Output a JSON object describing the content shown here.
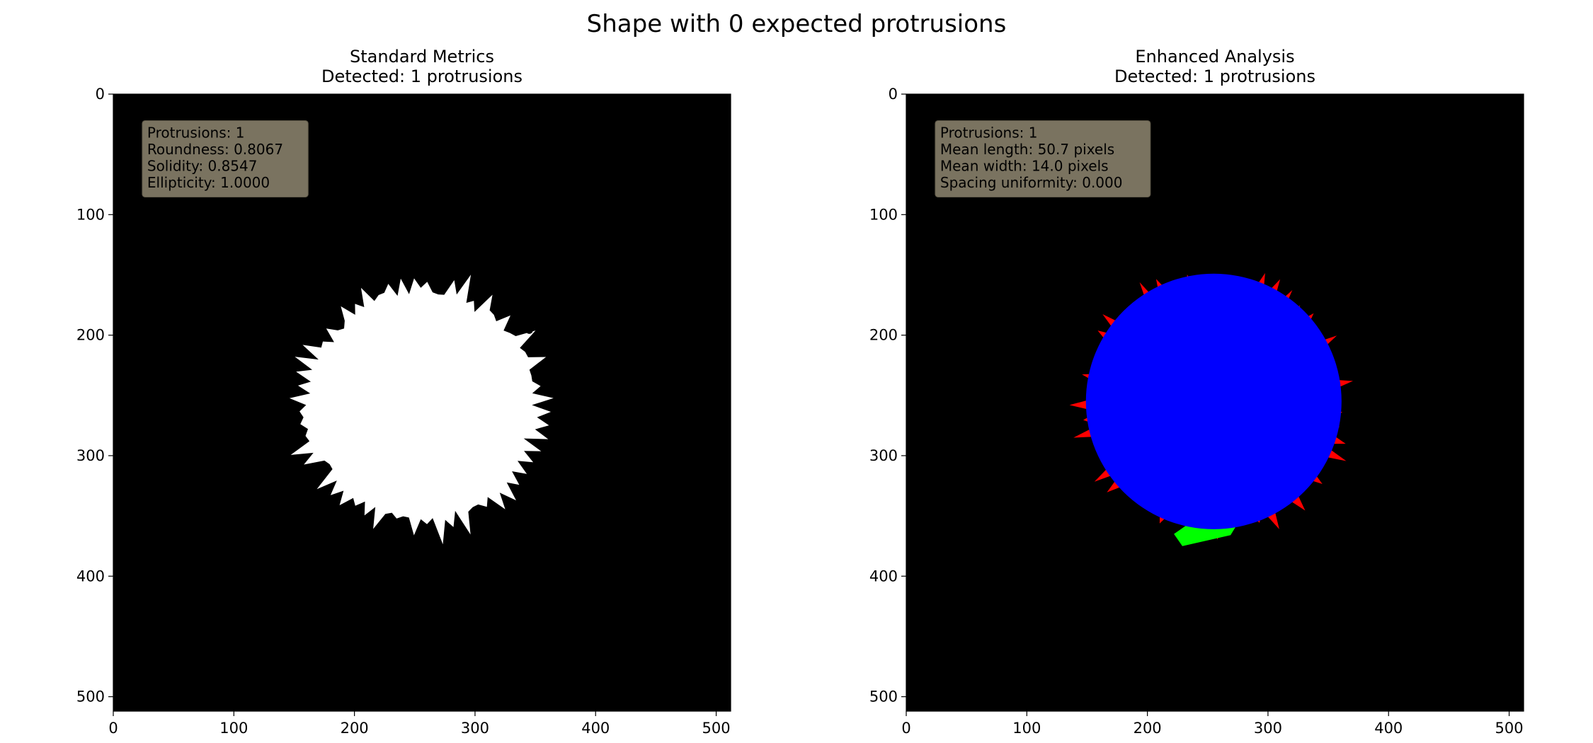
{
  "figure": {
    "suptitle": "Shape with 0 expected protrusions"
  },
  "colors": {
    "background": "#000000",
    "shape_white": "#ffffff",
    "core_blue": "#0000ff",
    "protrusion_red": "#ff0000",
    "detected_green": "#00ff00",
    "info_box": "#7a7360"
  },
  "chart_data": [
    {
      "type": "image",
      "title_line1": "Standard Metrics",
      "title_line2": "Detected: 1 protrusions",
      "xlim": [
        0,
        512
      ],
      "ylim": [
        512,
        0
      ],
      "xticks": [
        0,
        100,
        200,
        300,
        400,
        500
      ],
      "yticks": [
        0,
        100,
        200,
        300,
        400,
        500
      ],
      "shape_center": [
        255,
        258
      ],
      "shape_mean_radius": 95,
      "info": [
        "Protrusions: 1",
        "Roundness: 0.8067",
        "Solidity: 0.8547",
        "Ellipticity: 1.0000"
      ]
    },
    {
      "type": "image",
      "title_line1": "Enhanced Analysis",
      "title_line2": "Detected: 1 protrusions",
      "xlim": [
        0,
        512
      ],
      "ylim": [
        512,
        0
      ],
      "xticks": [
        0,
        100,
        200,
        300,
        400,
        500
      ],
      "yticks": [
        0,
        100,
        200,
        300,
        400,
        500
      ],
      "core_center": [
        255,
        255
      ],
      "core_radius": 88,
      "detected_protrusion": {
        "base_x": [
          235,
          275
        ],
        "tip": [
          225,
          375
        ]
      },
      "info": [
        "Protrusions: 1",
        "Mean length: 50.7 pixels",
        "Mean width: 14.0 pixels",
        "Spacing uniformity: 0.000"
      ]
    }
  ]
}
